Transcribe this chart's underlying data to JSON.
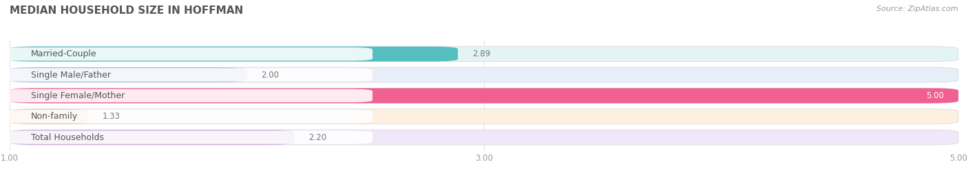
{
  "title": "MEDIAN HOUSEHOLD SIZE IN HOFFMAN",
  "source": "Source: ZipAtlas.com",
  "categories": [
    "Married-Couple",
    "Single Male/Father",
    "Single Female/Mother",
    "Non-family",
    "Total Households"
  ],
  "values": [
    2.89,
    2.0,
    5.0,
    1.33,
    2.2
  ],
  "bar_colors": [
    "#55bfc0",
    "#a8bce8",
    "#f06090",
    "#f5c9a0",
    "#c8a8d8"
  ],
  "bar_bg_colors": [
    "#e4f4f5",
    "#e8eef8",
    "#fde8f0",
    "#fdf0e0",
    "#f0e8f8"
  ],
  "xlim": [
    1.0,
    5.0
  ],
  "xticks": [
    1.0,
    3.0,
    5.0
  ],
  "bar_height": 0.72,
  "title_fontsize": 11,
  "label_fontsize": 9,
  "value_fontsize": 8.5,
  "source_fontsize": 8,
  "background_color": "#ffffff"
}
